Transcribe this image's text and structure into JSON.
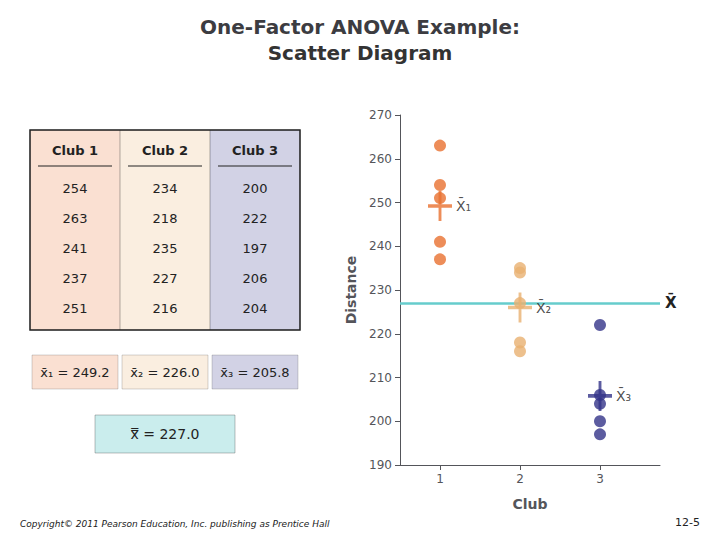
{
  "chart_data": {
    "type": "scatter",
    "title": "One-Factor ANOVA Example:",
    "subtitle": "Scatter Diagram",
    "xlabel": "Club",
    "ylabel": "Distance",
    "xlim": [
      0.5,
      3.75
    ],
    "xticks": [
      1,
      2,
      3
    ],
    "ylim": [
      190,
      270
    ],
    "yticks": [
      190,
      200,
      210,
      220,
      230,
      240,
      250,
      260,
      270
    ],
    "grid": false,
    "series": [
      {
        "name": "Club 1",
        "color": "#E87030",
        "x": 1,
        "values": [
          254,
          263,
          241,
          237,
          251
        ],
        "mean": 249.2,
        "mean_label": "x̄₁ = 249.2",
        "mean_marker_label": "X̄₁"
      },
      {
        "name": "Club 2",
        "color": "#E8B070",
        "x": 2,
        "values": [
          234,
          218,
          235,
          227,
          216
        ],
        "mean": 226.0,
        "mean_label": "x̄₂ = 226.0",
        "mean_marker_label": "X̄₂"
      },
      {
        "name": "Club 3",
        "color": "#333388",
        "x": 3,
        "values": [
          200,
          222,
          197,
          206,
          204
        ],
        "mean": 205.8,
        "mean_label": "x̄₃ = 205.8",
        "mean_marker_label": "X̄₃"
      }
    ],
    "grand_mean": 227.0,
    "grand_mean_label": "x̿ = 227.0",
    "grand_mean_marker_label": "X̄",
    "grand_mean_color": "#66CCCC",
    "annotations": [
      "Copyright© 2011 Pearson Education, Inc. publishing as Prentice Hall",
      "12-5"
    ]
  }
}
